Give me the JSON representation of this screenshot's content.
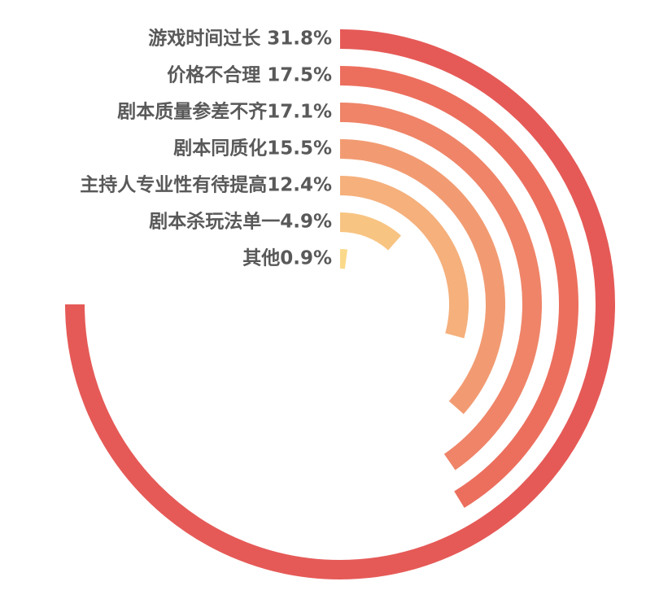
{
  "chart_data": {
    "type": "radial_bar",
    "categories": [
      "游戏时间过长 31.8%",
      "价格不合理 17.5%",
      "剧本质量参差不齐17.1%",
      "剧本同质化15.5%",
      "主持人专业性有待提高12.4%",
      "剧本杀玩法单一4.9%",
      "其他0.9%"
    ],
    "values": [
      31.8,
      17.5,
      17.1,
      15.5,
      12.4,
      4.9,
      0.9
    ],
    "colors": [
      "#e55a57",
      "#ec6f5e",
      "#ef8468",
      "#f29b72",
      "#f5b07c",
      "#f8c482",
      "#fbd98a"
    ],
    "rlim": [
      0,
      42.4
    ]
  }
}
